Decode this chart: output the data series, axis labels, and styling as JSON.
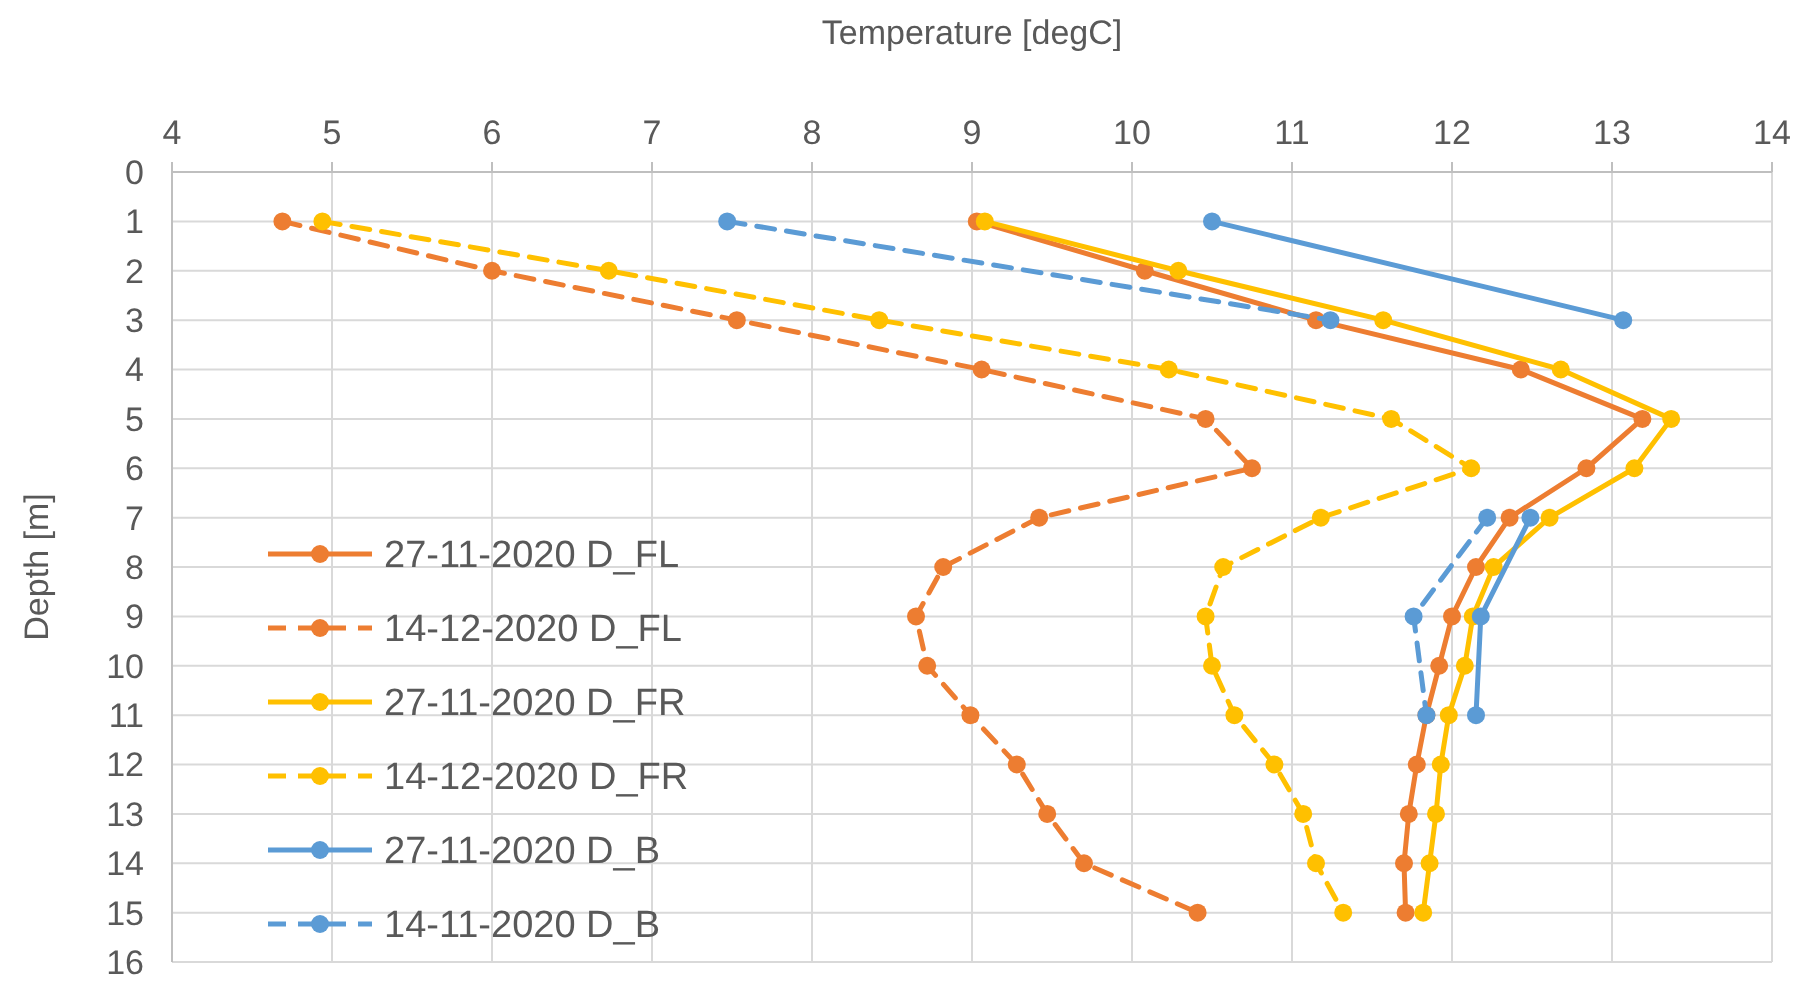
{
  "chart_data": {
    "type": "line",
    "xlabel": "Temperature [degC]",
    "ylabel": "Depth [m]",
    "xlim": [
      4,
      14
    ],
    "xticks": [
      4,
      5,
      6,
      7,
      8,
      9,
      10,
      11,
      12,
      13,
      14
    ],
    "ylim": [
      16,
      0
    ],
    "yticks": [
      0,
      1,
      2,
      3,
      4,
      5,
      6,
      7,
      8,
      9,
      10,
      11,
      12,
      13,
      14,
      15,
      16
    ],
    "grid": true,
    "legend": "bottom left",
    "marker": "circle",
    "series": [
      {
        "name": "27-11-2020 D_FL",
        "color": "#ed7d31",
        "line_style": "solid",
        "x": [
          9.03,
          10.08,
          11.15,
          12.43,
          13.19,
          12.84,
          12.36,
          12.15,
          12.0,
          11.92,
          11.84,
          11.78,
          11.73,
          11.7,
          11.71
        ],
        "values": [
          1,
          2,
          3,
          4,
          5,
          6,
          7,
          8,
          9,
          10,
          11,
          12,
          13,
          14,
          15
        ]
      },
      {
        "name": "14-12-2020 D_FL",
        "color": "#ed7d31",
        "line_style": "dashed",
        "x": [
          4.69,
          6.0,
          7.53,
          9.06,
          10.46,
          10.75,
          9.42,
          8.82,
          8.65,
          8.72,
          8.99,
          9.28,
          9.47,
          9.7,
          10.41
        ],
        "values": [
          1,
          2,
          3,
          4,
          5,
          6,
          7,
          8,
          9,
          10,
          11,
          12,
          13,
          14,
          15
        ]
      },
      {
        "name": "27-11-2020 D_FR",
        "color": "#ffc000",
        "line_style": "solid",
        "x": [
          9.08,
          10.29,
          11.57,
          12.68,
          13.37,
          13.14,
          12.61,
          12.26,
          12.13,
          12.08,
          11.98,
          11.93,
          11.9,
          11.86,
          11.82
        ],
        "values": [
          1,
          2,
          3,
          4,
          5,
          6,
          7,
          8,
          9,
          10,
          11,
          12,
          13,
          14,
          15
        ]
      },
      {
        "name": "14-12-2020 D_FR",
        "color": "#ffc000",
        "line_style": "dashed",
        "x": [
          4.94,
          6.73,
          8.42,
          10.23,
          11.62,
          12.12,
          11.18,
          10.57,
          10.46,
          10.5,
          10.64,
          10.89,
          11.07,
          11.15,
          11.32
        ],
        "values": [
          1,
          2,
          3,
          4,
          5,
          6,
          7,
          8,
          9,
          10,
          11,
          12,
          13,
          14,
          15
        ]
      },
      {
        "name": "27-11-2020 D_B",
        "color": "#5b9bd5",
        "line_style": "solid",
        "x": [
          10.5,
          13.07,
          null,
          12.49,
          12.18,
          12.15
        ],
        "values": [
          1,
          3,
          null,
          7,
          9,
          11
        ]
      },
      {
        "name": "14-11-2020 D_B",
        "color": "#5b9bd5",
        "line_style": "dashed",
        "x": [
          7.47,
          11.24,
          null,
          12.22,
          11.76,
          11.84
        ],
        "values": [
          1,
          3,
          null,
          7,
          9,
          11
        ]
      }
    ]
  }
}
